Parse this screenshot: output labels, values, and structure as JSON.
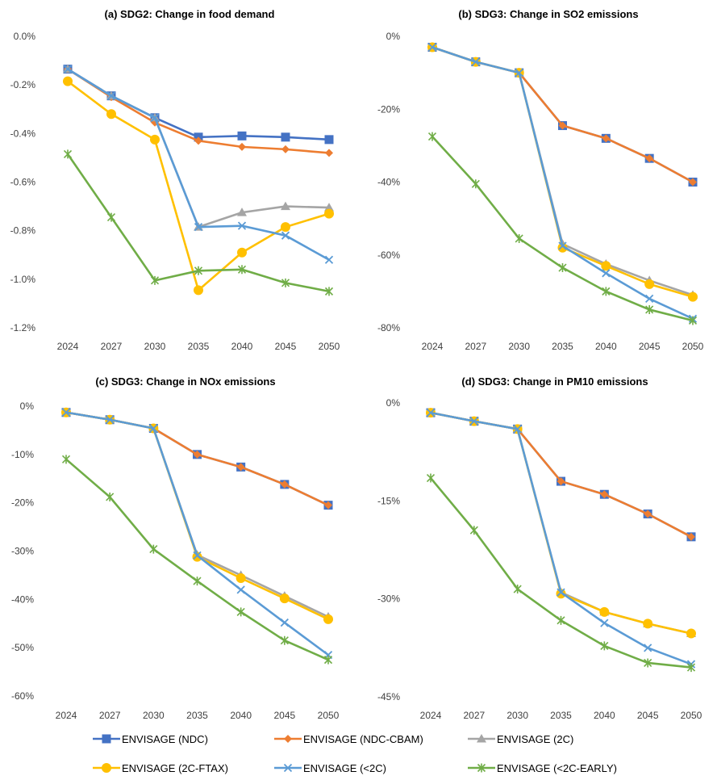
{
  "chart_data": [
    {
      "type": "line",
      "title": "(a) SDG2: Change in food demand",
      "categories": [
        "2024",
        "2027",
        "2030",
        "2035",
        "2040",
        "2045",
        "2050"
      ],
      "ylim": [
        -1.2,
        0.0
      ],
      "yticks": [
        0.0,
        -0.2,
        -0.4,
        -0.6,
        -0.8,
        -1.0,
        -1.2
      ],
      "ytick_labels": [
        "0.0%",
        "-0.2%",
        "-0.4%",
        "-0.6%",
        "-0.8%",
        "-1.0%",
        "-1.2%"
      ],
      "grid": false,
      "series": [
        {
          "name": "ENVISAGE (NDC)",
          "values": [
            -0.135,
            -0.245,
            -0.335,
            -0.415,
            -0.41,
            -0.415,
            -0.425
          ]
        },
        {
          "name": "ENVISAGE (NDC-CBAM)",
          "values": [
            -0.135,
            -0.25,
            -0.355,
            -0.43,
            -0.455,
            -0.465,
            -0.48
          ]
        },
        {
          "name": "ENVISAGE (2C)",
          "values": [
            -0.135,
            -0.245,
            -0.335,
            -0.785,
            -0.725,
            -0.7,
            -0.705
          ]
        },
        {
          "name": "ENVISAGE (2C-FTAX)",
          "values": [
            -0.185,
            -0.32,
            -0.425,
            -1.045,
            -0.89,
            -0.785,
            -0.73
          ]
        },
        {
          "name": "ENVISAGE (<2C)",
          "values": [
            -0.135,
            -0.245,
            -0.335,
            -0.785,
            -0.78,
            -0.82,
            -0.92
          ]
        },
        {
          "name": "ENVISAGE (<2C-EARLY)",
          "values": [
            -0.485,
            -0.745,
            -1.005,
            -0.965,
            -0.96,
            -1.015,
            -1.05
          ]
        }
      ]
    },
    {
      "type": "line",
      "title": "(b) SDG3: Change in SO2 emissions",
      "categories": [
        "2024",
        "2027",
        "2030",
        "2035",
        "2040",
        "2045",
        "2050"
      ],
      "ylim": [
        -80,
        0
      ],
      "yticks": [
        0,
        -20,
        -40,
        -60,
        -80
      ],
      "ytick_labels": [
        "0%",
        "-20%",
        "-40%",
        "-60%",
        "-80%"
      ],
      "grid": false,
      "series": [
        {
          "name": "ENVISAGE (NDC)",
          "values": [
            -3,
            -7,
            -10,
            -24.5,
            -28,
            -33.5,
            -40
          ]
        },
        {
          "name": "ENVISAGE (NDC-CBAM)",
          "values": [
            -3,
            -7,
            -10,
            -24.5,
            -28,
            -33.5,
            -40
          ]
        },
        {
          "name": "ENVISAGE (2C)",
          "values": [
            -3,
            -7,
            -10,
            -57,
            -62.5,
            -67,
            -71
          ]
        },
        {
          "name": "ENVISAGE (2C-FTAX)",
          "values": [
            -3,
            -7,
            -10,
            -58,
            -63,
            -68,
            -71.5
          ]
        },
        {
          "name": "ENVISAGE (<2C)",
          "values": [
            -3,
            -7,
            -10,
            -57.5,
            -65,
            -72,
            -77.5
          ]
        },
        {
          "name": "ENVISAGE (<2C-EARLY)",
          "values": [
            -27.5,
            -40.5,
            -55.5,
            -63.5,
            -70,
            -75,
            -78
          ]
        }
      ]
    },
    {
      "type": "line",
      "title": "(c) SDG3: Change in NOx emissions",
      "categories": [
        "2024",
        "2027",
        "2030",
        "2035",
        "2040",
        "2045",
        "2050"
      ],
      "ylim": [
        -60,
        0
      ],
      "yticks": [
        0,
        -10,
        -20,
        -30,
        -40,
        -50,
        -60
      ],
      "ytick_labels": [
        "0%",
        "-10%",
        "-20%",
        "-30%",
        "-40%",
        "-50%",
        "-60%"
      ],
      "grid": false,
      "series": [
        {
          "name": "ENVISAGE (NDC)",
          "values": [
            -1.3,
            -2.8,
            -4.6,
            -10,
            -12.6,
            -16.2,
            -20.5
          ]
        },
        {
          "name": "ENVISAGE (NDC-CBAM)",
          "values": [
            -1.3,
            -2.8,
            -4.6,
            -10,
            -12.6,
            -16.2,
            -20.5
          ]
        },
        {
          "name": "ENVISAGE (2C)",
          "values": [
            -1.3,
            -2.8,
            -4.6,
            -30.8,
            -35,
            -39.3,
            -43.6
          ]
        },
        {
          "name": "ENVISAGE (2C-FTAX)",
          "values": [
            -1.3,
            -2.8,
            -4.6,
            -31.2,
            -35.6,
            -39.8,
            -44.1
          ]
        },
        {
          "name": "ENVISAGE (<2C)",
          "values": [
            -1.3,
            -2.8,
            -4.6,
            -30.9,
            -38,
            -44.8,
            -51.5
          ]
        },
        {
          "name": "ENVISAGE (<2C-EARLY)",
          "values": [
            -11,
            -18.8,
            -29.6,
            -36.2,
            -42.6,
            -48.5,
            -52.5
          ]
        }
      ]
    },
    {
      "type": "line",
      "title": "(d) SDG3: Change in PM10 emissions",
      "categories": [
        "2024",
        "2027",
        "2030",
        "2035",
        "2040",
        "2045",
        "2050"
      ],
      "ylim": [
        -45,
        0
      ],
      "yticks": [
        0,
        -15,
        -30,
        -45
      ],
      "ytick_labels": [
        "0%",
        "-15%",
        "-30%",
        "-45%"
      ],
      "grid": false,
      "series": [
        {
          "name": "ENVISAGE (NDC)",
          "values": [
            -1.5,
            -2.8,
            -4,
            -12,
            -14,
            -17,
            -20.5
          ]
        },
        {
          "name": "ENVISAGE (NDC-CBAM)",
          "values": [
            -1.5,
            -2.8,
            -4,
            -12,
            -14,
            -17,
            -20.5
          ]
        },
        {
          "name": "ENVISAGE (2C)",
          "values": [
            -1.5,
            -2.8,
            -4,
            -29,
            -32,
            -33.8,
            -35.3
          ]
        },
        {
          "name": "ENVISAGE (2C-FTAX)",
          "values": [
            -1.5,
            -2.8,
            -4,
            -29.2,
            -32,
            -33.8,
            -35.3
          ]
        },
        {
          "name": "ENVISAGE (<2C)",
          "values": [
            -1.5,
            -2.8,
            -4,
            -29,
            -33.7,
            -37.5,
            -40
          ]
        },
        {
          "name": "ENVISAGE (<2C-EARLY)",
          "values": [
            -11.5,
            -19.5,
            -28.5,
            -33.3,
            -37.2,
            -39.8,
            -40.5
          ]
        }
      ]
    }
  ],
  "legend": {
    "placement": "bottom",
    "items": [
      {
        "label": "ENVISAGE (NDC)",
        "color": "#4472C4",
        "marker": "square"
      },
      {
        "label": "ENVISAGE (NDC-CBAM)",
        "color": "#ED7D31",
        "marker": "diamond"
      },
      {
        "label": "ENVISAGE (2C)",
        "color": "#A5A5A5",
        "marker": "triangle"
      },
      {
        "label": "ENVISAGE (2C-FTAX)",
        "color": "#FFC000",
        "marker": "circle"
      },
      {
        "label": "ENVISAGE (<2C)",
        "color": "#5B9BD5",
        "marker": "x"
      },
      {
        "label": "ENVISAGE (<2C-EARLY)",
        "color": "#70AD47",
        "marker": "star"
      }
    ]
  }
}
